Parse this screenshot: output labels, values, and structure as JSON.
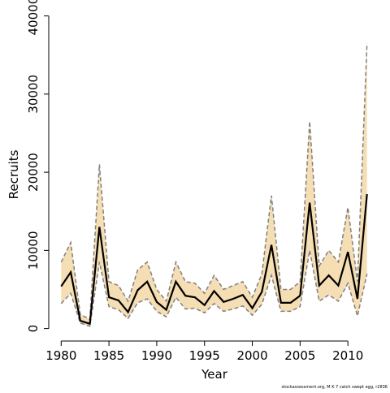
{
  "chart_data": {
    "type": "line",
    "x": [
      1980,
      1981,
      1982,
      1983,
      1984,
      1985,
      1986,
      1987,
      1988,
      1989,
      1990,
      1991,
      1992,
      1993,
      1994,
      1995,
      1996,
      1997,
      1998,
      1999,
      2000,
      2001,
      2002,
      2003,
      2004,
      2005,
      2006,
      2007,
      2008,
      2009,
      2010,
      2011,
      2012
    ],
    "values": [
      5400,
      7200,
      1000,
      600,
      13000,
      4000,
      3600,
      2100,
      4900,
      6000,
      3400,
      2400,
      6000,
      4200,
      4000,
      3000,
      4800,
      3400,
      3800,
      4300,
      2600,
      4700,
      10700,
      3300,
      3300,
      4200,
      16100,
      5500,
      6800,
      5500,
      9800,
      3800,
      17200
    ],
    "upper": [
      8500,
      11000,
      1800,
      1200,
      21000,
      6000,
      5500,
      3500,
      7500,
      8500,
      5000,
      3500,
      8500,
      6000,
      5800,
      4500,
      6800,
      5000,
      5500,
      6000,
      4000,
      7000,
      17000,
      5000,
      5000,
      6000,
      26500,
      8000,
      10000,
      8500,
      15500,
      6000,
      36500
    ],
    "lower": [
      3200,
      4500,
      700,
      300,
      8500,
      2800,
      2400,
      1300,
      3300,
      3800,
      2200,
      1500,
      4000,
      2500,
      2600,
      2000,
      3200,
      2200,
      2500,
      2900,
      1700,
      3100,
      6800,
      2200,
      2200,
      2800,
      10000,
      3500,
      4300,
      3500,
      5800,
      1600,
      7000
    ],
    "color": "#000000",
    "bound_color": "#808080",
    "band_color": "#f5deb3",
    "xlabel": "Year",
    "ylabel": "Recruits",
    "xlim": [
      1978.7,
      2013.3
    ],
    "ylim": [
      -1600,
      41000
    ],
    "xticks": [
      1980,
      1985,
      1990,
      1995,
      2000,
      2005,
      2010
    ],
    "yticks": [
      0,
      10000,
      20000,
      30000,
      40000
    ],
    "footnote": "stockassessment.org, M K 7 catch swept egg, r2836"
  }
}
